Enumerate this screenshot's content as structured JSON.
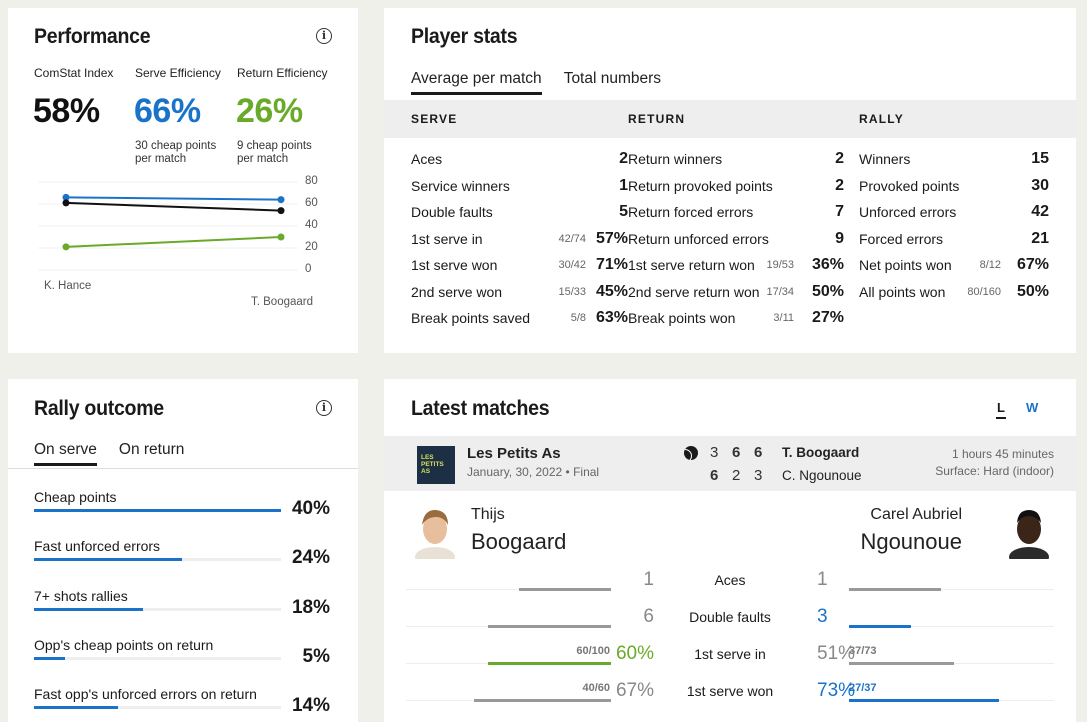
{
  "performance": {
    "title": "Performance",
    "info_glyph": "i",
    "metrics": [
      {
        "label": "ComStat Index",
        "value": "58%",
        "color": "#111111",
        "note": ""
      },
      {
        "label": "Serve Efficiency",
        "value": "66%",
        "color": "#1a73c9",
        "note": "30 cheap points\nper match"
      },
      {
        "label": "Return Efficiency",
        "value": "26%",
        "color": "#6aaa2a",
        "note": "9 cheap points\nper match"
      }
    ],
    "chart": {
      "y_ticks": [
        "80",
        "60",
        "40",
        "20",
        "0"
      ],
      "left_label": "K. Hance",
      "right_label": "T. Boogaard"
    }
  },
  "chart_data": {
    "type": "line",
    "categories": [
      "K. Hance",
      "T. Boogaard"
    ],
    "ylim": [
      0,
      80
    ],
    "series": [
      {
        "values": [
          66,
          64
        ],
        "color": "#1a73c9"
      },
      {
        "values": [
          61,
          54
        ],
        "color": "#111111"
      },
      {
        "values": [
          21,
          30
        ],
        "color": "#6aaa2a"
      }
    ]
  },
  "player_stats": {
    "title": "Player stats",
    "tabs": [
      "Average per match",
      "Total numbers"
    ],
    "active_tab": 0,
    "columns": [
      {
        "header": "SERVE",
        "rows": [
          {
            "label": "Aces",
            "frac": "",
            "value": "2"
          },
          {
            "label": "Service winners",
            "frac": "",
            "value": "1"
          },
          {
            "label": "Double faults",
            "frac": "",
            "value": "5"
          },
          {
            "label": "1st serve in",
            "frac": "42/74",
            "value": "57%"
          },
          {
            "label": "1st serve won",
            "frac": "30/42",
            "value": "71%"
          },
          {
            "label": "2nd serve won",
            "frac": "15/33",
            "value": "45%"
          },
          {
            "label": "Break points saved",
            "frac": "5/8",
            "value": "63%"
          }
        ]
      },
      {
        "header": "RETURN",
        "rows": [
          {
            "label": "Return winners",
            "frac": "",
            "value": "2"
          },
          {
            "label": "Return provoked points",
            "frac": "",
            "value": "2"
          },
          {
            "label": "Return forced errors",
            "frac": "",
            "value": "7"
          },
          {
            "label": "Return unforced errors",
            "frac": "",
            "value": "9"
          },
          {
            "label": "1st serve return won",
            "frac": "19/53",
            "value": "36%"
          },
          {
            "label": "2nd serve return won",
            "frac": "17/34",
            "value": "50%"
          },
          {
            "label": "Break points won",
            "frac": "3/11",
            "value": "27%"
          }
        ]
      },
      {
        "header": "RALLY",
        "rows": [
          {
            "label": "Winners",
            "frac": "",
            "value": "15"
          },
          {
            "label": "Provoked points",
            "frac": "",
            "value": "30"
          },
          {
            "label": "Unforced errors",
            "frac": "",
            "value": "42"
          },
          {
            "label": "Forced errors",
            "frac": "",
            "value": "21"
          },
          {
            "label": "Net points won",
            "frac": "8/12",
            "value": "67%"
          },
          {
            "label": "All points won",
            "frac": "80/160",
            "value": "50%"
          }
        ]
      }
    ]
  },
  "rally_outcome": {
    "title": "Rally outcome",
    "info_glyph": "i",
    "tabs": [
      "On serve",
      "On return"
    ],
    "active_tab": 0,
    "items": [
      {
        "label": "Cheap points",
        "value": "40%",
        "fill": 1.0
      },
      {
        "label": "Fast unforced errors",
        "value": "24%",
        "fill": 0.6
      },
      {
        "label": "7+ shots rallies",
        "value": "18%",
        "fill": 0.44
      },
      {
        "label": "Opp's cheap points on return",
        "value": "5%",
        "fill": 0.125
      },
      {
        "label": "Fast opp's unforced errors on return",
        "value": "14%",
        "fill": 0.34
      }
    ]
  },
  "latest_matches": {
    "title": "Latest matches",
    "filter_l": "L",
    "filter_w": "W",
    "match": {
      "logo_text": [
        "LES",
        "PETITS",
        "AS"
      ],
      "tournament": "Les Petits As",
      "date": "January, 30, 2022",
      "round": "• Final",
      "player1_short": "T. Boogaard",
      "player2_short": "C. Ngounoue",
      "p1_sets": [
        "3",
        "6",
        "6"
      ],
      "p2_sets": [
        "6",
        "2",
        "3"
      ],
      "duration": "1 hours 45 minutes",
      "surface": "Surface: Hard (indoor)"
    },
    "player_left": {
      "first": "Thijs",
      "last": "Boogaard"
    },
    "player_right": {
      "first": "Carel Aubriel",
      "last": "Ngounoue"
    },
    "comparisons": [
      {
        "label": "Aces",
        "left": "1",
        "right": "1",
        "left_frac": "",
        "right_frac": "",
        "left_level": 0.45,
        "right_level": 0.45,
        "highlight": "none"
      },
      {
        "label": "Double faults",
        "left": "6",
        "right": "3",
        "left_frac": "",
        "right_frac": "",
        "left_level": 0.6,
        "right_level": 0.3,
        "highlight": "right-blue"
      },
      {
        "label": "1st serve in",
        "left": "60%",
        "right": "51%",
        "left_frac": "60/100",
        "right_frac": "37/73",
        "left_level": 0.6,
        "right_level": 0.51,
        "highlight": "left-green"
      },
      {
        "label": "1st serve won",
        "left": "67%",
        "right": "73%",
        "left_frac": "40/60",
        "right_frac": "27/37",
        "left_level": 0.67,
        "right_level": 0.73,
        "highlight": "right-blue"
      }
    ]
  },
  "colors": {
    "blue": "#1a73c9",
    "green": "#6aaa2a",
    "gray_bar": "#999999"
  }
}
